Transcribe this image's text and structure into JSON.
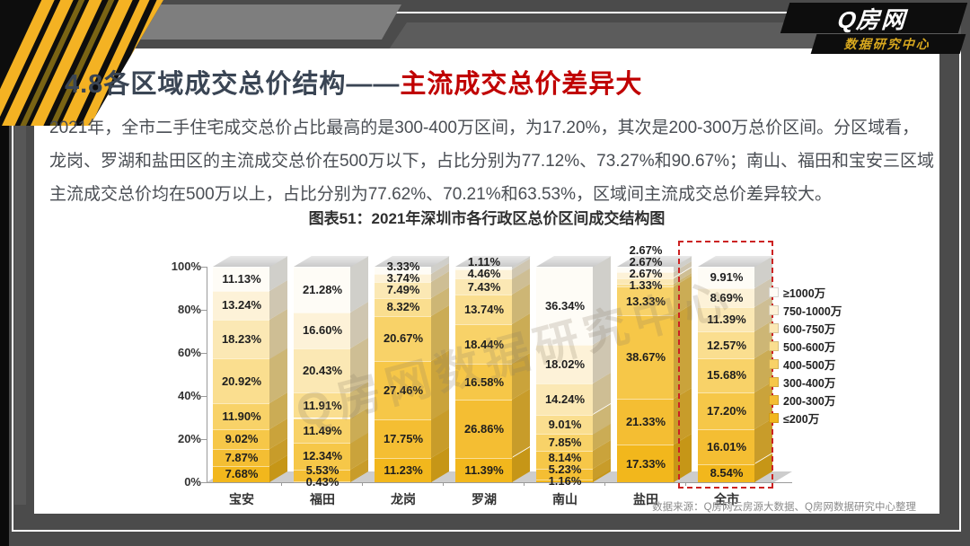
{
  "brand": {
    "line1": "Q房网",
    "line2": "数据研究中心"
  },
  "header": {
    "section_title": "4.8各区域成交总价结构",
    "dash": "——",
    "highlight": "主流成交总价差异大"
  },
  "intro": {
    "lines": [
      "2021年，全市二手住宅成交总价占比最高的是300-400万区间，为17.20%，其次是200-300万总价区间。分区域看，",
      "龙岗、罗湖和盐田区的主流成交总价在500万以下，占比分别为77.12%、73.27%和90.67%；南山、福田和宝安三区域",
      "主流成交总价均在500万以上，占比分别为77.62%、70.21%和63.53%，区域间主流成交总价差异较大。"
    ]
  },
  "chart_data": {
    "type": "bar",
    "stacked": true,
    "title": "图表51：2021年深圳市各行政区总价区间成交结构图",
    "categories": [
      "宝安",
      "福田",
      "龙岗",
      "罗湖",
      "南山",
      "盐田",
      "全市"
    ],
    "y_ticks": [
      "0%",
      "20%",
      "40%",
      "60%",
      "80%",
      "100%"
    ],
    "ylim": [
      0,
      100
    ],
    "legend_position": "right",
    "highlighted_category": "全市",
    "watermark": "Q房网数据研究中心",
    "series": [
      {
        "name": "≤200万",
        "color": "#F2B71C",
        "values": [
          7.68,
          0.43,
          11.23,
          11.39,
          1.16,
          17.33,
          8.54
        ]
      },
      {
        "name": "200-300万",
        "color": "#F4BE33",
        "values": [
          7.87,
          5.53,
          17.75,
          26.86,
          5.23,
          21.33,
          16.01
        ]
      },
      {
        "name": "300-400万",
        "color": "#F6C748",
        "values": [
          9.02,
          12.34,
          27.46,
          16.58,
          8.14,
          38.67,
          17.2
        ]
      },
      {
        "name": "400-500万",
        "color": "#F8D268",
        "values": [
          11.9,
          11.49,
          20.67,
          18.44,
          7.85,
          13.33,
          15.68
        ]
      },
      {
        "name": "500-600万",
        "color": "#FADE8F",
        "values": [
          20.92,
          11.91,
          8.32,
          13.74,
          9.01,
          1.33,
          12.57
        ]
      },
      {
        "name": "600-750万",
        "color": "#FBE8B4",
        "values": [
          18.23,
          20.43,
          7.49,
          7.43,
          14.24,
          2.67,
          11.39
        ]
      },
      {
        "name": "750-1000万",
        "color": "#FDF2D8",
        "values": [
          13.24,
          16.6,
          3.74,
          4.46,
          18.02,
          2.67,
          8.69
        ]
      },
      {
        "name": "≥1000万",
        "color": "#FEFCF6",
        "values": [
          11.13,
          21.28,
          3.33,
          1.11,
          36.34,
          2.67,
          9.91
        ]
      }
    ]
  },
  "footer": {
    "source": "数据来源：Q房网云房源大数据、Q房网数据研究中心整理"
  },
  "colors": {
    "brand_yellow": "#F4B223",
    "accent_red": "#C00000",
    "highlight_box_red": "#CC2222",
    "title_dark": "#3A4554"
  }
}
